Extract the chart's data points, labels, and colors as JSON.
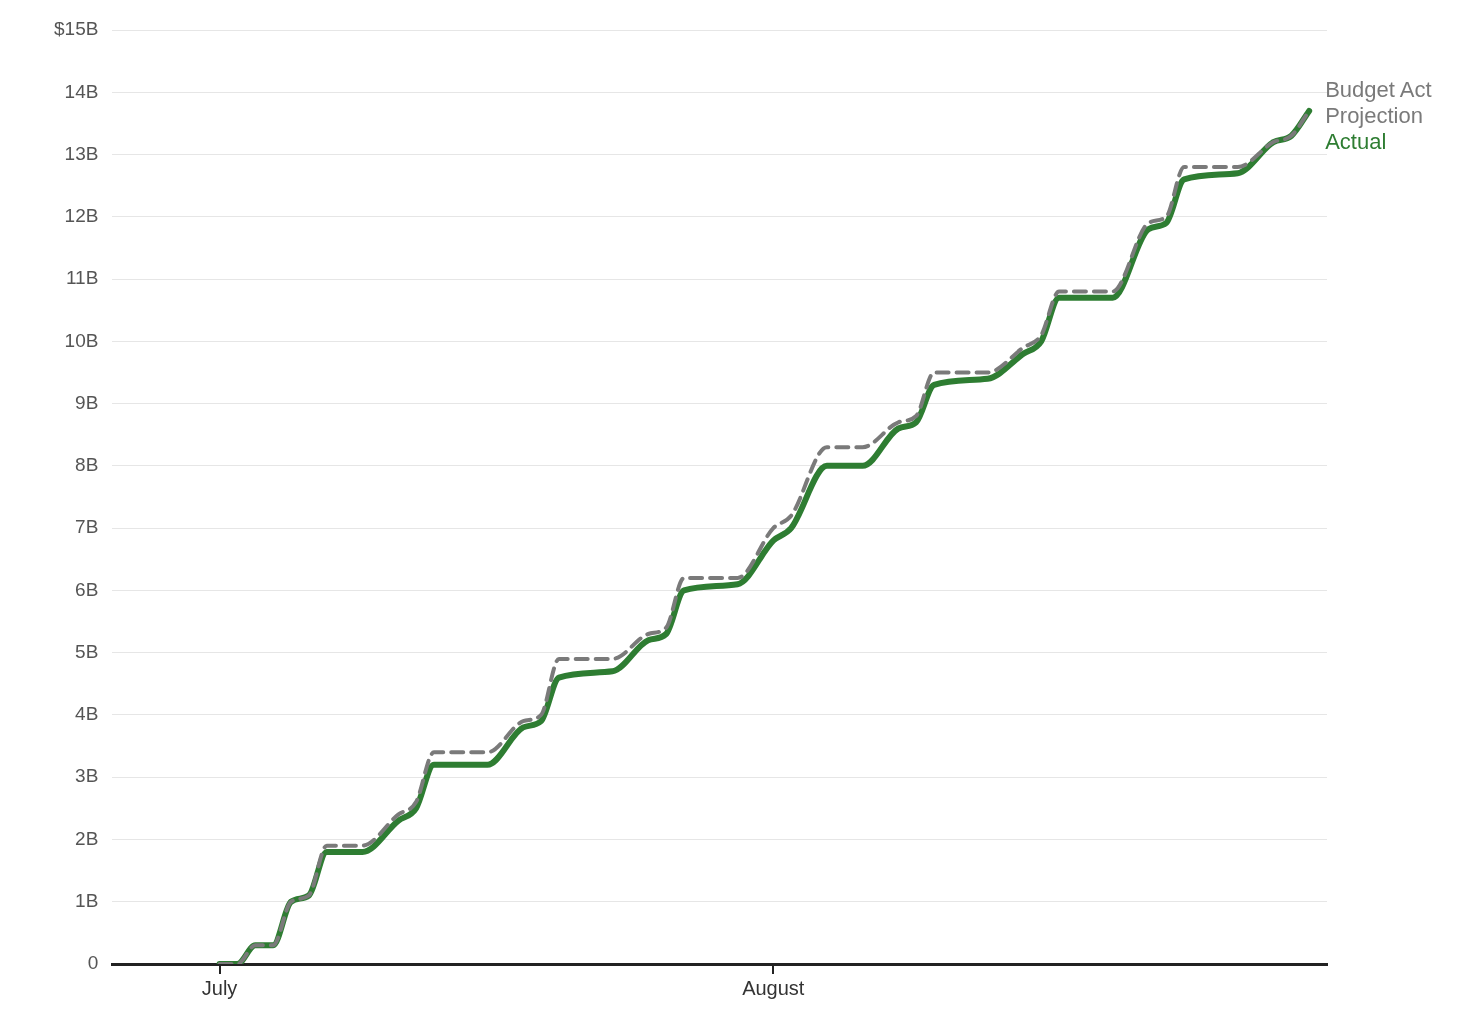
{
  "chart_data": {
    "type": "line",
    "x": [
      "--07-01",
      "--07-02",
      "--07-03",
      "--07-04",
      "--07-05",
      "--07-06",
      "--07-07",
      "--07-09",
      "--07-11",
      "--07-12",
      "--07-13",
      "--07-16",
      "--07-18",
      "--07-19",
      "--07-20",
      "--07-23",
      "--07-25",
      "--07-26",
      "--07-27",
      "--07-30",
      "--08-01",
      "--08-02",
      "--08-04",
      "--08-06",
      "--08-08",
      "--08-09",
      "--08-10",
      "--08-13",
      "--08-15",
      "--08-16",
      "--08-17",
      "--08-20",
      "--08-22",
      "--08-23",
      "--08-24",
      "--08-27",
      "--08-29",
      "--08-30",
      "--08-31"
    ],
    "series": [
      {
        "name": "Budget Act Projection",
        "color": "#7a7a7a",
        "line_style": "dashed",
        "values": [
          0,
          0,
          0.3,
          0.3,
          1.0,
          1.1,
          1.9,
          1.9,
          2.4,
          2.6,
          3.4,
          3.4,
          3.9,
          4.0,
          4.9,
          4.9,
          5.3,
          5.4,
          6.2,
          6.2,
          7.0,
          7.2,
          8.3,
          8.3,
          8.7,
          8.8,
          9.5,
          9.5,
          9.9,
          10.1,
          10.8,
          10.8,
          11.9,
          12.0,
          12.8,
          12.8,
          13.2,
          13.3,
          13.7
        ]
      },
      {
        "name": "Actual",
        "color": "#2e7d32",
        "line_style": "solid",
        "values": [
          0,
          0,
          0.3,
          0.3,
          1.0,
          1.1,
          1.8,
          1.8,
          2.3,
          2.5,
          3.2,
          3.2,
          3.8,
          3.9,
          4.6,
          4.7,
          5.2,
          5.3,
          6.0,
          6.1,
          6.8,
          7.0,
          8.0,
          8.0,
          8.6,
          8.7,
          9.3,
          9.4,
          9.8,
          10.0,
          10.7,
          10.7,
          11.8,
          11.9,
          12.6,
          12.7,
          13.2,
          13.3,
          13.7
        ]
      }
    ],
    "xlim": [
      "--06-25",
      "--09-01"
    ],
    "xticks": [
      {
        "value": "--07-01",
        "label": "July"
      },
      {
        "value": "--08-01",
        "label": "August"
      }
    ],
    "ylim": [
      0,
      15
    ],
    "yticks": [
      {
        "value": 0,
        "label": "0"
      },
      {
        "value": 1,
        "label": "1B"
      },
      {
        "value": 2,
        "label": "2B"
      },
      {
        "value": 3,
        "label": "3B"
      },
      {
        "value": 4,
        "label": "4B"
      },
      {
        "value": 5,
        "label": "5B"
      },
      {
        "value": 6,
        "label": "6B"
      },
      {
        "value": 7,
        "label": "7B"
      },
      {
        "value": 8,
        "label": "8B"
      },
      {
        "value": 9,
        "label": "9B"
      },
      {
        "value": 10,
        "label": "10B"
      },
      {
        "value": 11,
        "label": "11B"
      },
      {
        "value": 12,
        "label": "12B"
      },
      {
        "value": 13,
        "label": "13B"
      },
      {
        "value": 14,
        "label": "14B"
      },
      {
        "value": 15,
        "label": "$15B"
      }
    ],
    "grid": "y",
    "legend": false,
    "marker": "none"
  }
}
